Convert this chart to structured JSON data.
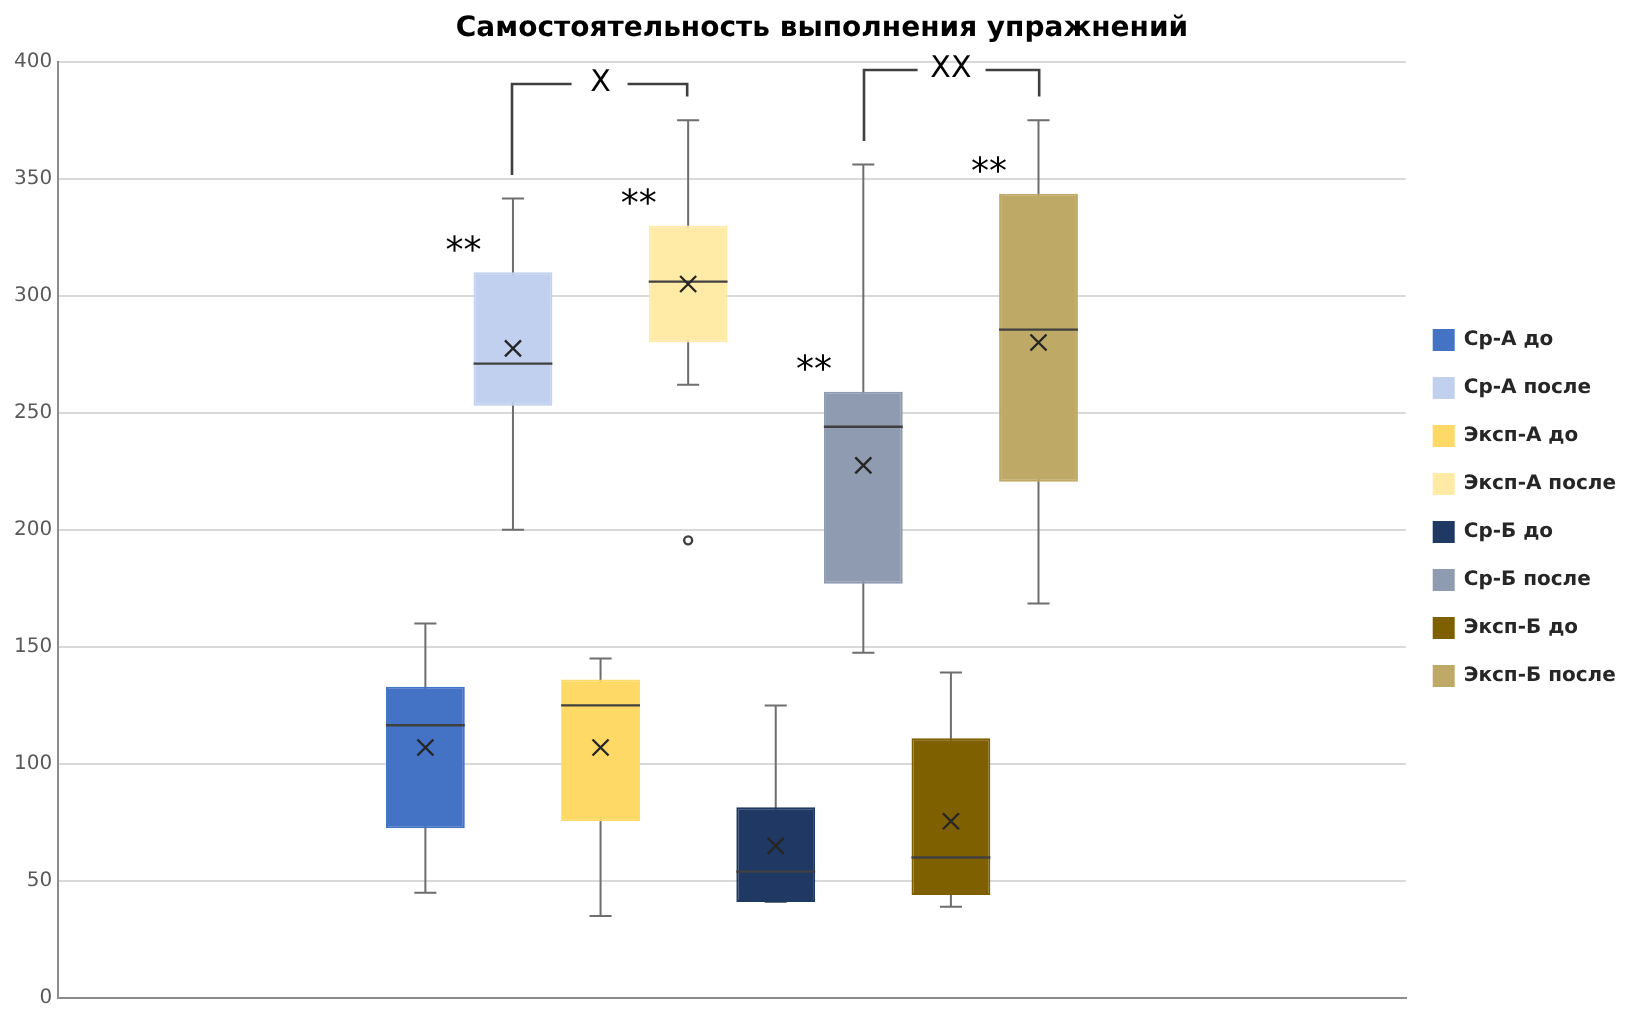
{
  "chart_data": {
    "type": "box",
    "title": "Самостоятельность выполнения упражнений",
    "categories": [
      null
    ],
    "ylim": [
      0,
      400
    ],
    "yticks": [
      0,
      50,
      100,
      150,
      200,
      250,
      300,
      350,
      400
    ],
    "grid": "y",
    "legend": "right",
    "series": [
      {
        "name": "Ср-А до",
        "color": "#4472c4",
        "boxes": [
          {
            "low": 45,
            "q1": 72.5,
            "median": 116.5,
            "q3": 133,
            "high": 160,
            "mean": 107
          }
        ]
      },
      {
        "name": "Ср-А после",
        "color": "#c0d0ee",
        "boxes": [
          {
            "low": 200,
            "q1": 253,
            "median": 271,
            "q3": 310,
            "high": 341.5,
            "mean": 277.5
          }
        ]
      },
      {
        "name": "Эксп-А до",
        "color": "#ffd966",
        "boxes": [
          {
            "low": 35,
            "q1": 75.5,
            "median": 125,
            "q3": 136,
            "high": 145,
            "mean": 107
          }
        ]
      },
      {
        "name": "Эксп-А после",
        "color": "#ffeaa6",
        "boxes": [
          {
            "low": 262,
            "q1": 280,
            "median": 306,
            "q3": 330,
            "high": 375,
            "mean": 305,
            "outliers": [
              195.5
            ]
          }
        ]
      },
      {
        "name": "Ср-Б до",
        "color": "#1f3864",
        "boxes": [
          {
            "low": 41,
            "q1": 41,
            "median": 54,
            "q3": 81.5,
            "high": 125,
            "mean": 65
          }
        ]
      },
      {
        "name": "Ср-Б после",
        "color": "#8f9bb1",
        "boxes": [
          {
            "low": 147.5,
            "q1": 177,
            "median": 244,
            "q3": 259,
            "high": 356,
            "mean": 227.5
          }
        ]
      },
      {
        "name": "Эксп-Б до",
        "color": "#7f6000",
        "boxes": [
          {
            "low": 39,
            "q1": 44,
            "median": 60,
            "q3": 111,
            "high": 139,
            "mean": 75.5
          }
        ]
      },
      {
        "name": "Эксп-Б после",
        "color": "#bfa966",
        "boxes": [
          {
            "low": 168.5,
            "q1": 220.5,
            "median": 285.5,
            "q3": 343.5,
            "high": 375,
            "mean": 280
          }
        ]
      }
    ],
    "annotations": [
      "**",
      "**",
      "**",
      "**",
      "X",
      "XX"
    ]
  }
}
